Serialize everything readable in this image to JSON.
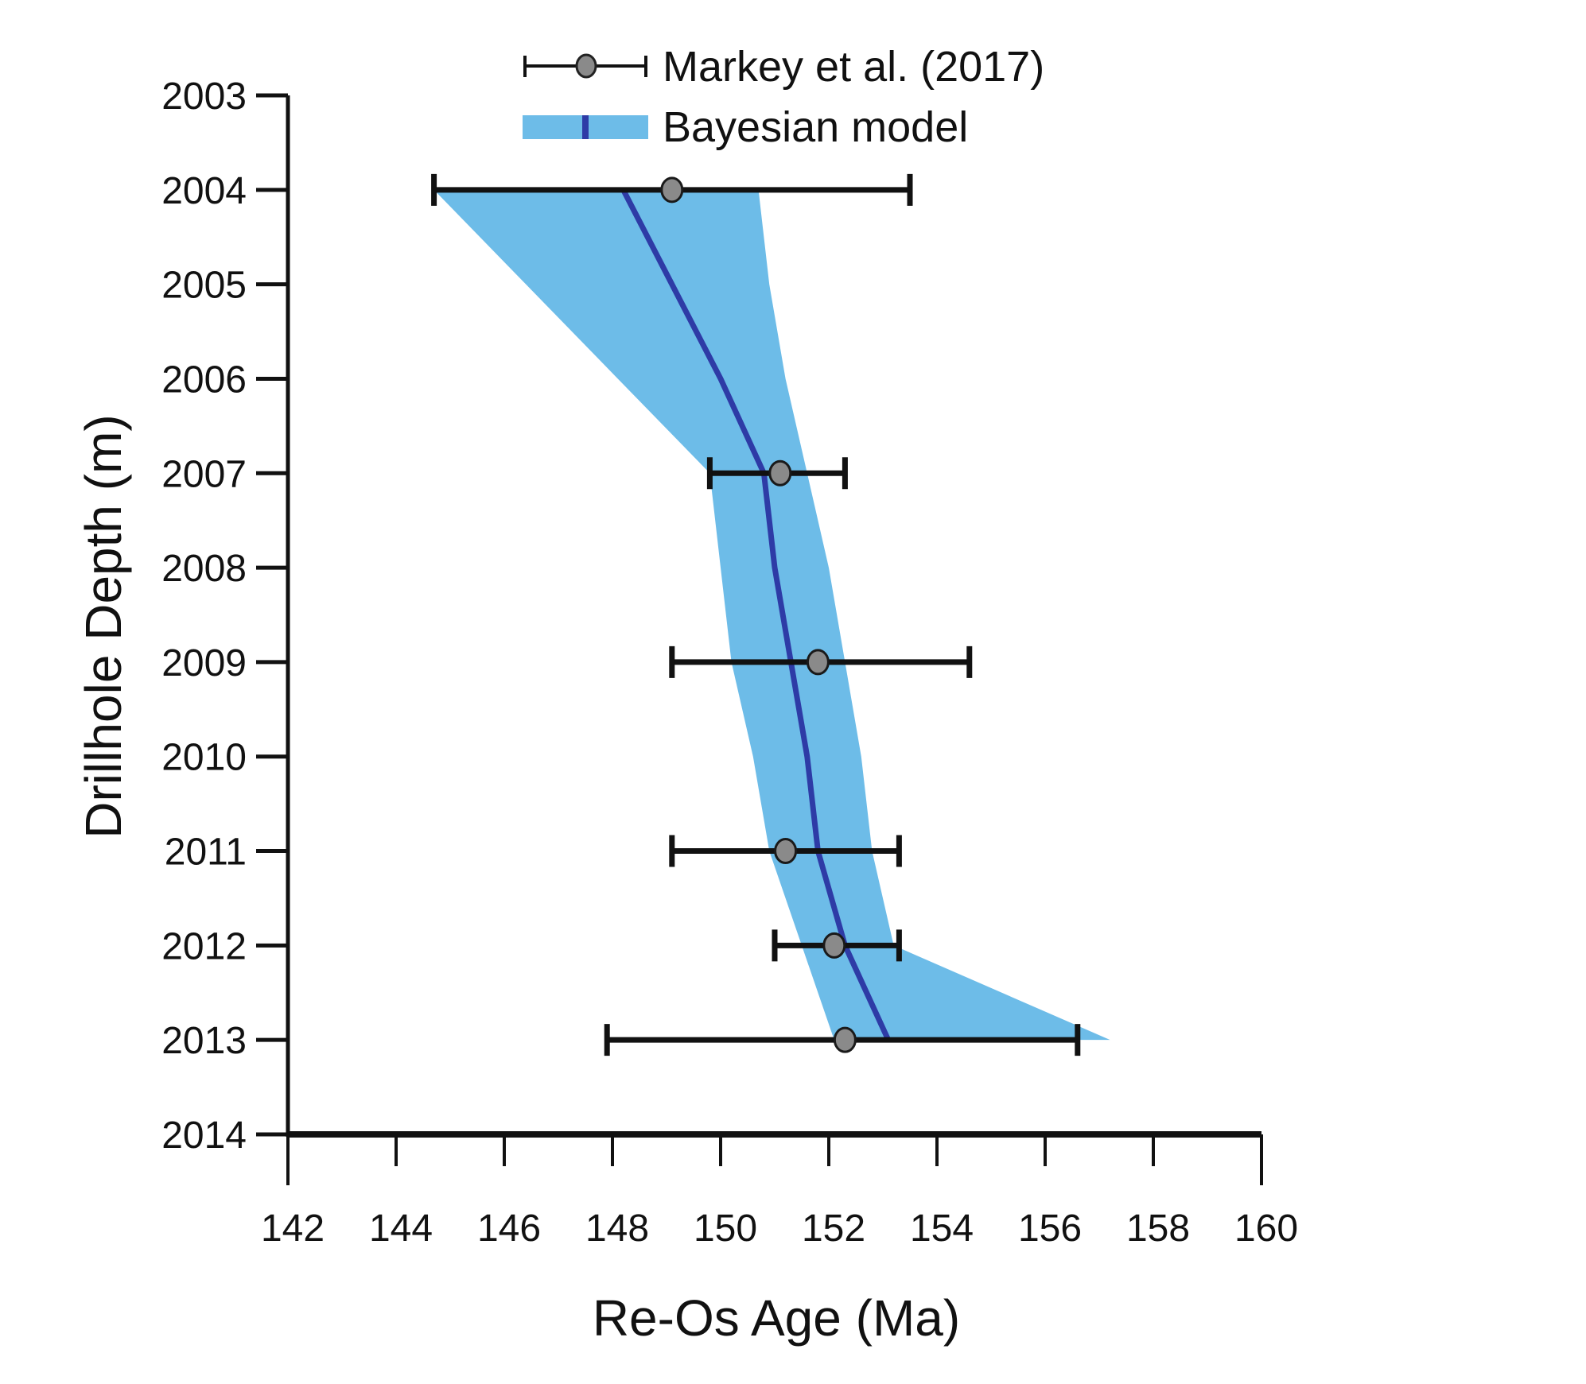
{
  "chart_data": {
    "type": "scatter",
    "title": "",
    "xlabel": "Re-Os Age (Ma)",
    "ylabel": "Drillhole Depth (m)",
    "xlim": [
      142,
      160
    ],
    "ylim": [
      2014,
      2003
    ],
    "y_inverted": true,
    "xticks": [
      "142",
      "144",
      "146",
      "148",
      "150",
      "152",
      "154",
      "156",
      "158",
      "160"
    ],
    "yticks": [
      "2003",
      "2004",
      "2005",
      "2006",
      "2007",
      "2008",
      "2009",
      "2010",
      "2011",
      "2012",
      "2013",
      "2014"
    ],
    "grid": false,
    "legend_position": "top-center",
    "colors": {
      "band": "#6DBCE8",
      "median": "#2E3BA6",
      "marker_fill": "#8A8A8A",
      "errorbar": "#111111",
      "axis": "#111111"
    },
    "series": [
      {
        "name": "Markey et al. (2017)",
        "kind": "errorbar",
        "points": [
          {
            "depth": 2004,
            "age": 149.1,
            "age_min": 144.7,
            "age_max": 153.5
          },
          {
            "depth": 2007,
            "age": 151.1,
            "age_min": 149.8,
            "age_max": 152.3
          },
          {
            "depth": 2009,
            "age": 151.8,
            "age_min": 149.1,
            "age_max": 154.6
          },
          {
            "depth": 2011,
            "age": 151.2,
            "age_min": 149.1,
            "age_max": 153.3
          },
          {
            "depth": 2012,
            "age": 152.1,
            "age_min": 151.0,
            "age_max": 153.3
          },
          {
            "depth": 2013,
            "age": 152.3,
            "age_min": 147.9,
            "age_max": 156.6
          }
        ]
      },
      {
        "name": "Bayesian model",
        "kind": "band",
        "depth": [
          2004,
          2005,
          2006,
          2007,
          2008,
          2009,
          2010,
          2011,
          2012,
          2013
        ],
        "median": [
          148.2,
          149.1,
          150.0,
          150.8,
          151.0,
          151.3,
          151.6,
          151.8,
          152.3,
          153.1
        ],
        "lower": [
          144.7,
          146.4,
          148.1,
          149.8,
          150.0,
          150.2,
          150.6,
          150.9,
          151.5,
          152.1
        ],
        "upper": [
          150.7,
          150.9,
          151.2,
          151.6,
          152.0,
          152.3,
          152.6,
          152.8,
          153.2,
          157.2
        ]
      }
    ]
  }
}
